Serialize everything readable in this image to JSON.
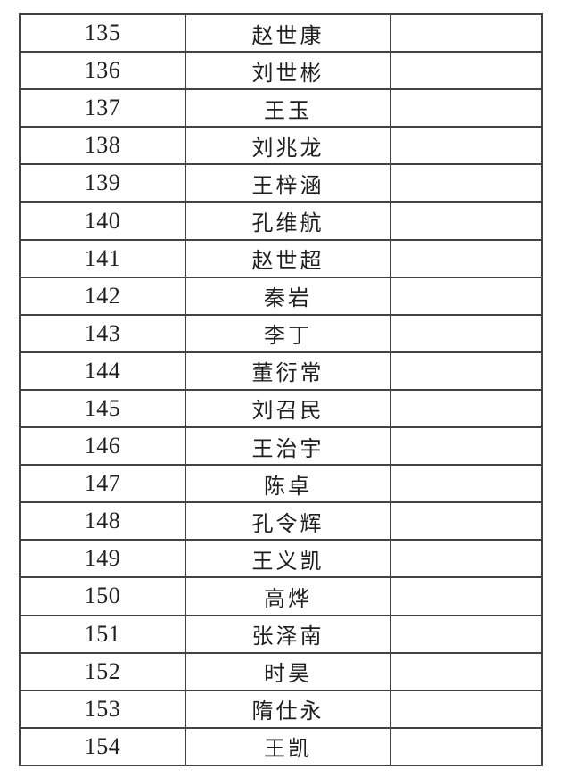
{
  "colors": {
    "page_background": "#ffffff",
    "text": "#1f1f1f",
    "border_inner": "#424242",
    "border_outer": "#161616",
    "border_top_edge": "#9a9a9a"
  },
  "roster_table": {
    "column_roles": [
      "number",
      "name",
      "blank"
    ],
    "rows": [
      {
        "number": "135",
        "name": "赵世康",
        "blank": ""
      },
      {
        "number": "136",
        "name": "刘世彬",
        "blank": ""
      },
      {
        "number": "137",
        "name": "王玉",
        "blank": ""
      },
      {
        "number": "138",
        "name": "刘兆龙",
        "blank": ""
      },
      {
        "number": "139",
        "name": "王梓涵",
        "blank": ""
      },
      {
        "number": "140",
        "name": "孔维航",
        "blank": ""
      },
      {
        "number": "141",
        "name": "赵世超",
        "blank": ""
      },
      {
        "number": "142",
        "name": "秦岩",
        "blank": ""
      },
      {
        "number": "143",
        "name": "李丁",
        "blank": ""
      },
      {
        "number": "144",
        "name": "董衍常",
        "blank": ""
      },
      {
        "number": "145",
        "name": "刘召民",
        "blank": ""
      },
      {
        "number": "146",
        "name": "王治宇",
        "blank": ""
      },
      {
        "number": "147",
        "name": "陈卓",
        "blank": ""
      },
      {
        "number": "148",
        "name": "孔令辉",
        "blank": ""
      },
      {
        "number": "149",
        "name": "王义凯",
        "blank": ""
      },
      {
        "number": "150",
        "name": "高烨",
        "blank": ""
      },
      {
        "number": "151",
        "name": "张泽南",
        "blank": ""
      },
      {
        "number": "152",
        "name": "时昊",
        "blank": ""
      },
      {
        "number": "153",
        "name": "隋仕永",
        "blank": ""
      },
      {
        "number": "154",
        "name": "王凯",
        "blank": ""
      }
    ]
  }
}
